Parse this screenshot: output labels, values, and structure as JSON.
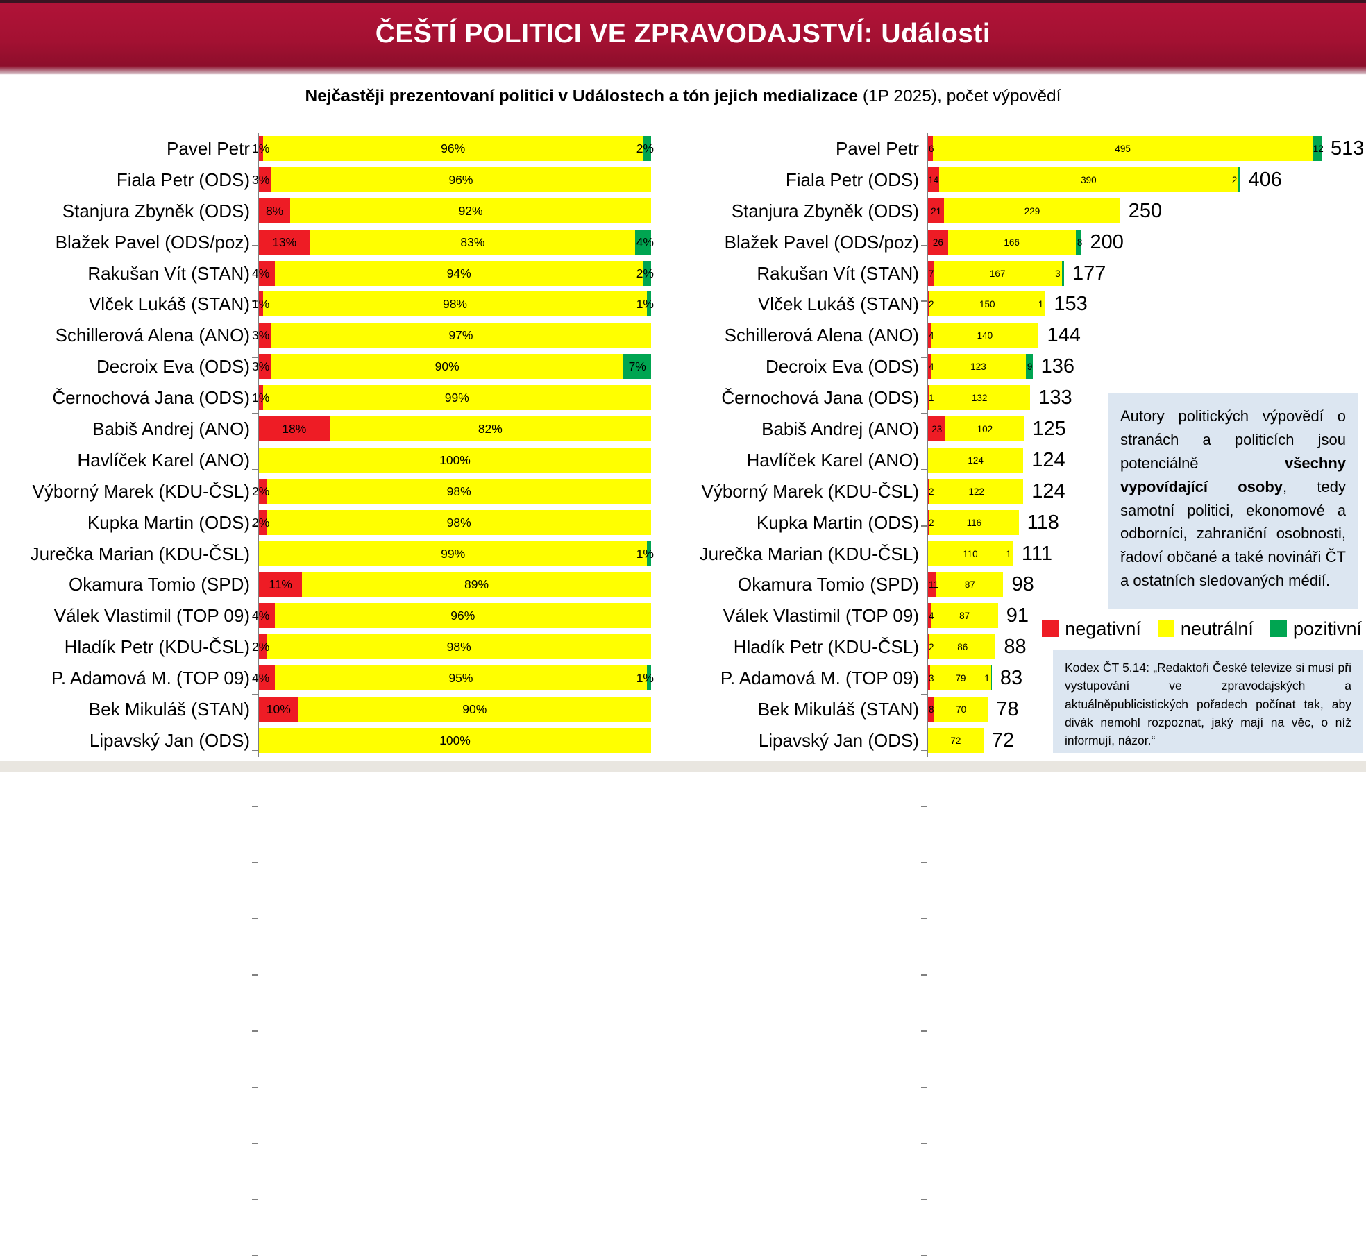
{
  "header": {
    "title": "ČEŠTÍ POLITICI VE ZPRAVODAJSTVÍ: Události"
  },
  "subtitle": {
    "bold": "Nejčastěji prezentovaní politici v Událostech a tón jejich medializace",
    "regular": " (1P 2025), počet výpovědí"
  },
  "colors": {
    "negative": "#ee1c25",
    "neutral": "#ffff00",
    "positive": "#00a551",
    "header_top_strip": "#3a1422",
    "header_gradient_top": "#b11338",
    "header_gradient_bottom": "#8d0e2b",
    "box_bg": "#dce6f1",
    "footer_band": "#e9e6e0",
    "axis": "#808080"
  },
  "chart_data": [
    {
      "id": "tone-share-percent",
      "type": "bar",
      "orientation": "horizontal",
      "stacked": true,
      "unit": "%",
      "xlim": [
        0,
        100
      ],
      "grid": false,
      "categories": [
        "Pavel Petr",
        "Fiala Petr (ODS)",
        "Stanjura Zbyněk (ODS)",
        "Blažek Pavel (ODS/poz)",
        "Rakušan Vít (STAN)",
        "Vlček Lukáš (STAN)",
        "Schillerová Alena (ANO)",
        "Decroix Eva (ODS)",
        "Černochová Jana (ODS)",
        "Babiš Andrej (ANO)",
        "Havlíček Karel (ANO)",
        "Výborný Marek (KDU-ČSL)",
        "Kupka Martin (ODS)",
        "Jurečka Marian (KDU-ČSL)",
        "Okamura Tomio (SPD)",
        "Válek Vlastimil (TOP 09)",
        "Hladík Petr (KDU-ČSL)",
        "P. Adamová M. (TOP 09)",
        "Bek Mikuláš (STAN)",
        "Lipavský Jan (ODS)"
      ],
      "series": [
        {
          "name": "negativní",
          "color": "#ee1c25",
          "values": [
            1,
            3,
            8,
            13,
            4,
            1,
            3,
            3,
            1,
            18,
            0,
            2,
            2,
            0,
            11,
            4,
            2,
            4,
            10,
            0
          ]
        },
        {
          "name": "neutrální",
          "color": "#ffff00",
          "values": [
            96,
            96,
            92,
            83,
            94,
            98,
            97,
            90,
            99,
            82,
            100,
            98,
            98,
            99,
            89,
            96,
            98,
            95,
            90,
            100
          ]
        },
        {
          "name": "pozitivní",
          "color": "#00a551",
          "values": [
            2,
            0,
            0,
            4,
            2,
            1,
            0,
            7,
            0,
            0,
            0,
            0,
            0,
            1,
            0,
            0,
            0,
            1,
            0,
            0
          ]
        }
      ]
    },
    {
      "id": "statement-counts",
      "type": "bar",
      "orientation": "horizontal",
      "stacked": true,
      "unit": "počet výpovědí",
      "xmax": 513,
      "grid": false,
      "categories": [
        "Pavel Petr",
        "Fiala Petr (ODS)",
        "Stanjura Zbyněk (ODS)",
        "Blažek Pavel (ODS/poz)",
        "Rakušan Vít (STAN)",
        "Vlček Lukáš (STAN)",
        "Schillerová Alena (ANO)",
        "Decroix Eva (ODS)",
        "Černochová Jana (ODS)",
        "Babiš Andrej (ANO)",
        "Havlíček Karel (ANO)",
        "Výborný Marek (KDU-ČSL)",
        "Kupka Martin (ODS)",
        "Jurečka Marian (KDU-ČSL)",
        "Okamura Tomio (SPD)",
        "Válek Vlastimil (TOP 09)",
        "Hladík Petr (KDU-ČSL)",
        "P. Adamová M. (TOP 09)",
        "Bek Mikuláš (STAN)",
        "Lipavský Jan (ODS)"
      ],
      "series": [
        {
          "name": "negativní",
          "color": "#ee1c25",
          "values": [
            6,
            14,
            21,
            26,
            7,
            2,
            4,
            4,
            1,
            23,
            0,
            2,
            2,
            0,
            11,
            4,
            2,
            3,
            8,
            0
          ]
        },
        {
          "name": "neutrální",
          "color": "#ffff00",
          "values": [
            495,
            390,
            229,
            166,
            167,
            150,
            140,
            123,
            132,
            102,
            124,
            122,
            116,
            110,
            87,
            87,
            86,
            79,
            70,
            72
          ]
        },
        {
          "name": "pozitivní",
          "color": "#00a551",
          "values": [
            12,
            2,
            0,
            8,
            3,
            1,
            0,
            9,
            0,
            0,
            0,
            0,
            0,
            1,
            0,
            0,
            0,
            1,
            0,
            0
          ]
        }
      ],
      "totals": [
        513,
        406,
        250,
        200,
        177,
        153,
        144,
        136,
        133,
        125,
        124,
        124,
        118,
        111,
        98,
        91,
        88,
        83,
        78,
        72
      ]
    }
  ],
  "legend": {
    "items": [
      {
        "label": "negativní",
        "color": "#ee1c25"
      },
      {
        "label": "neutrální",
        "color": "#ffff00"
      },
      {
        "label": "pozitivní",
        "color": "#00a551"
      }
    ]
  },
  "info_box": {
    "text_pre": "Autory politických výpovědí o stranách a politicích jsou potenciálně ",
    "text_bold": "všechny vypovídající osoby",
    "text_post": ", tedy samotní politici, ekonomové a odborníci, zahraniční osobnosti, řadoví občané a také novináři ČT a ostatních sledovaných médií."
  },
  "kodex_box": {
    "text": "Kodex ČT 5.14: „Redaktoři České televize si musí při vystupování ve zpravodajských a aktuálněpublicistických pořadech počínat tak, aby divák nemohl rozpoznat, jaký mají na věc, o níž informují, názor.“"
  }
}
